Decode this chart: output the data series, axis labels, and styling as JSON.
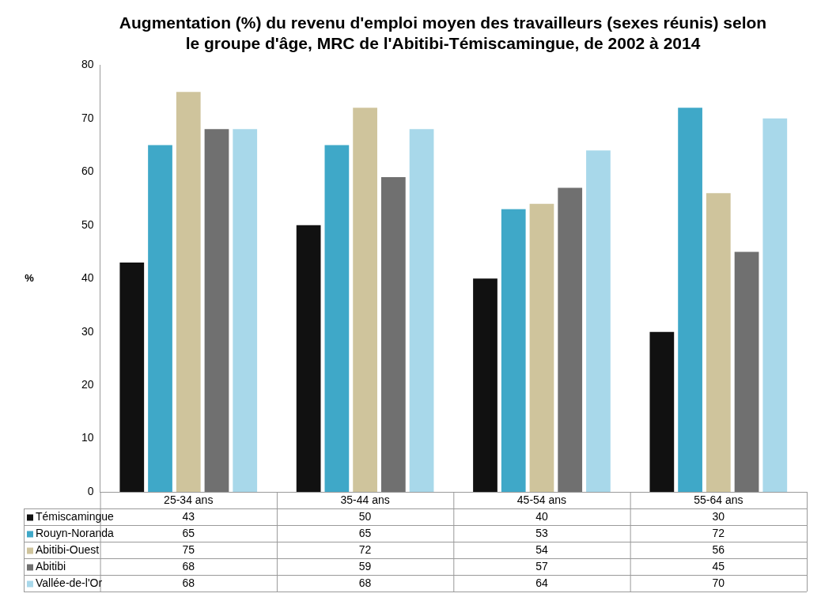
{
  "chart_data": {
    "type": "bar",
    "title": "Augmentation (%) du revenu d'emploi moyen des travailleurs (sexes réunis) selon le groupe d'âge, MRC de l'Abitibi-Témiscamingue, de 2002 à 2014",
    "ylabel": "%",
    "categories": [
      "25-34 ans",
      "35-44 ans",
      "45-54 ans",
      "55-64 ans"
    ],
    "series": [
      {
        "name": "Témiscamingue",
        "color": "#111111",
        "values": [
          43,
          50,
          40,
          30
        ]
      },
      {
        "name": "Rouyn-Noranda",
        "color": "#3fa8c8",
        "values": [
          65,
          65,
          53,
          72
        ]
      },
      {
        "name": "Abitibi-Ouest",
        "color": "#cfc49c",
        "values": [
          75,
          72,
          54,
          56
        ]
      },
      {
        "name": "Abitibi",
        "color": "#707070",
        "values": [
          68,
          59,
          57,
          45
        ]
      },
      {
        "name": "Vallée-de-l'Or",
        "color": "#a8d8ea",
        "values": [
          68,
          68,
          64,
          70
        ]
      }
    ],
    "ylim": [
      0,
      80
    ],
    "yticks": [
      0,
      10,
      20,
      30,
      40,
      50,
      60,
      70,
      80
    ],
    "grid": false,
    "legend": "bottom",
    "data_labels": true
  }
}
